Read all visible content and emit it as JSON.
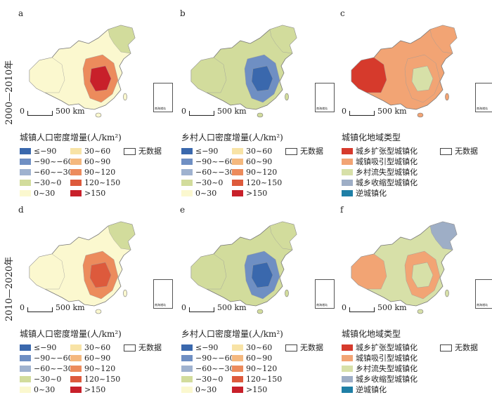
{
  "periods": [
    "2000—2010年",
    "2010—2020年"
  ],
  "scale_label": "500 km",
  "inset_label": "南海诸岛",
  "no_data_label": "无数据",
  "density_classes": [
    {
      "label": "≤−90",
      "color": "#3a68ad"
    },
    {
      "label": "−90~−60",
      "color": "#6f8fc3"
    },
    {
      "label": "−60~−30",
      "color": "#9fb2cf"
    },
    {
      "label": "−30~0",
      "color": "#d2dc9c"
    },
    {
      "label": "0~30",
      "color": "#fbf8cf"
    },
    {
      "label": "30~60",
      "color": "#f8e3a6"
    },
    {
      "label": "60~90",
      "color": "#f4b87e"
    },
    {
      "label": "90~120",
      "color": "#ec8b5c"
    },
    {
      "label": "120~150",
      "color": "#dd5a3c"
    },
    {
      "label": ">150",
      "color": "#c8202a"
    }
  ],
  "type_classes": [
    {
      "label": "城乡扩张型城镇化",
      "color": "#d63a2c"
    },
    {
      "label": "城镇吸引型城镇化",
      "color": "#f2a474"
    },
    {
      "label": "乡村流失型城镇化",
      "color": "#d7e0a8"
    },
    {
      "label": "城乡收缩型城镇化",
      "color": "#9eaec6"
    },
    {
      "label": "逆城镇化",
      "color": "#1f7fa6"
    }
  ],
  "panels": [
    {
      "letter": "a",
      "legend_title": "城镇人口密度增量(人/km²)",
      "legend": "density",
      "base": "#fbf8cf",
      "east": "#ec8b5c",
      "core": "#c8202a",
      "west": "#fbf8cf",
      "ne": "#d2dc9c"
    },
    {
      "letter": "b",
      "legend_title": "乡村人口密度增量(人/km²)",
      "legend": "density",
      "base": "#d2dc9c",
      "east": "#6f8fc3",
      "core": "#3a68ad",
      "west": "#d2dc9c",
      "ne": "#d2dc9c"
    },
    {
      "letter": "c",
      "legend_title": "城镇化地域类型",
      "legend": "type",
      "base": "#f2a474",
      "east": "#f2a474",
      "core": "#d7e0a8",
      "west": "#d63a2c",
      "ne": "#f2a474"
    },
    {
      "letter": "d",
      "legend_title": "城镇人口密度增量(人/km²)",
      "legend": "density",
      "base": "#fbf8cf",
      "east": "#ec8b5c",
      "core": "#dd5a3c",
      "west": "#fbf8cf",
      "ne": "#d2dc9c"
    },
    {
      "letter": "e",
      "legend_title": "乡村人口密度增量(人/km²)",
      "legend": "density",
      "base": "#d2dc9c",
      "east": "#6f8fc3",
      "core": "#3a68ad",
      "west": "#d2dc9c",
      "ne": "#d2dc9c"
    },
    {
      "letter": "f",
      "legend_title": "城镇化地域类型",
      "legend": "type",
      "base": "#d7e0a8",
      "east": "#f2a474",
      "core": "#d7e0a8",
      "west": "#f2a474",
      "ne": "#9eaec6"
    }
  ]
}
